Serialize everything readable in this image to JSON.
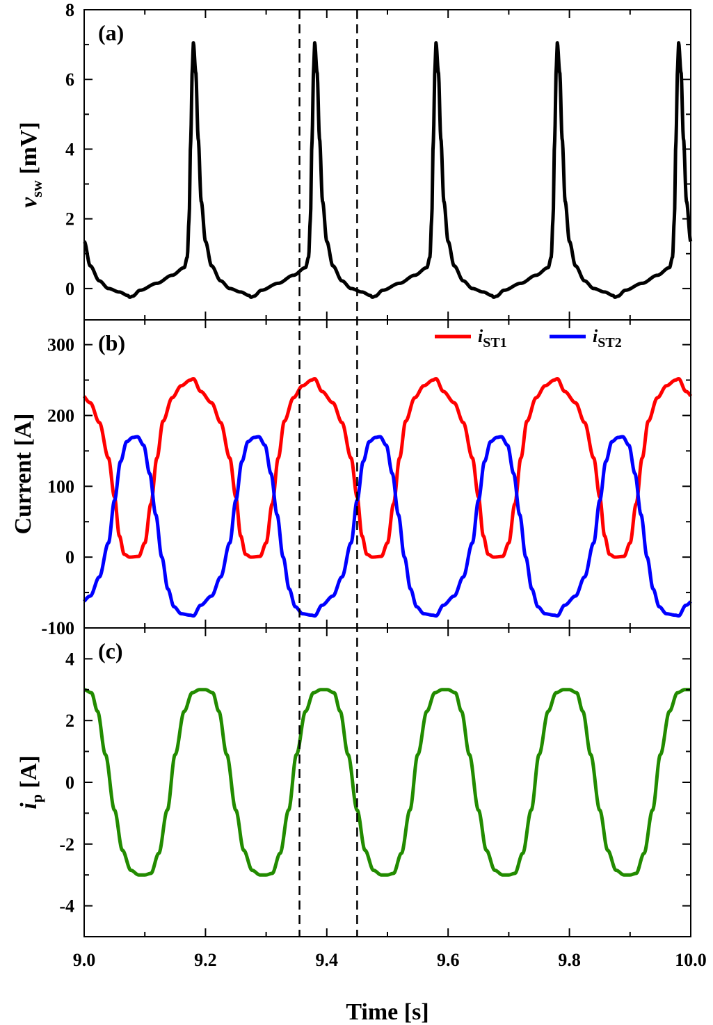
{
  "chart_data": [
    {
      "panel": "(a)",
      "type": "line",
      "ylabel_main": "v",
      "ylabel_sub": "sw",
      "ylabel_unit": " [mV]",
      "xlim": [
        9.0,
        10.0
      ],
      "ylim": [
        -0.9,
        8
      ],
      "yticks": [
        0,
        2,
        4,
        6,
        8
      ],
      "yticklabels": [
        "0",
        "2",
        "4",
        "6",
        "8"
      ],
      "series": [
        {
          "color": "#000000",
          "period": 0.2,
          "x_start": 9.0,
          "spike_times": [
            9.18,
            9.38,
            9.58,
            9.78,
            9.98
          ],
          "spike_peak": 7.05,
          "min_value": -0.25,
          "min_times": [
            9.075,
            9.275,
            9.475,
            9.675,
            9.875
          ],
          "pre_spike_level": 0.6,
          "x_end_value": 0.9
        }
      ]
    },
    {
      "panel": "(b)",
      "type": "line",
      "ylabel": "Current [A]",
      "xlim": [
        9.0,
        10.0
      ],
      "ylim": [
        -100,
        335
      ],
      "yticks": [
        -100,
        0,
        100,
        200,
        300
      ],
      "yticklabels": [
        "-100",
        "0",
        "100",
        "200",
        "300"
      ],
      "legend": "top-right",
      "series": [
        {
          "name_main": "i",
          "name_sub": "ST1",
          "color": "#ff0000",
          "period": 0.2,
          "max_value": 252,
          "max_times": [
            9.18,
            9.38,
            9.58,
            9.78,
            9.98
          ],
          "min_value": 0,
          "min_times": [
            9.105,
            9.305,
            9.505,
            9.705,
            9.905
          ],
          "x_start_value": 232
        },
        {
          "name_main": "i",
          "name_sub": "ST2",
          "color": "#0000ff",
          "period": 0.2,
          "max_value": 170,
          "max_times": [
            9.105,
            9.305,
            9.505,
            9.705,
            9.905
          ],
          "min_value": -83,
          "min_times": [
            9.18,
            9.38,
            9.58,
            9.78,
            9.98
          ],
          "x_start_value": -62
        }
      ]
    },
    {
      "panel": "(c)",
      "type": "line",
      "ylabel_main": "i",
      "ylabel_sub": "p",
      "ylabel_unit": " [A]",
      "xlabel": "Time [s]",
      "xlim": [
        9.0,
        10.0
      ],
      "ylim": [
        -5,
        5
      ],
      "yticks": [
        -4,
        -2,
        0,
        2,
        4
      ],
      "yticklabels": [
        "-4",
        "-2",
        "0",
        "2",
        "4"
      ],
      "xticks": [
        9.0,
        9.2,
        9.4,
        9.6,
        9.8,
        10.0
      ],
      "xticklabels": [
        "9.0",
        "9.2",
        "9.4",
        "9.6",
        "9.8",
        "10.0"
      ],
      "series": [
        {
          "color": "#228b00",
          "period": 0.2,
          "amplitude": 3.0,
          "max_times": [
            9.0,
            9.2,
            9.4,
            9.6,
            9.8,
            10.0
          ],
          "min_times": [
            9.1,
            9.3,
            9.5,
            9.7,
            9.9
          ]
        }
      ]
    }
  ],
  "vertical_markers": {
    "x": [
      9.355,
      9.45
    ],
    "style": "dashed"
  }
}
